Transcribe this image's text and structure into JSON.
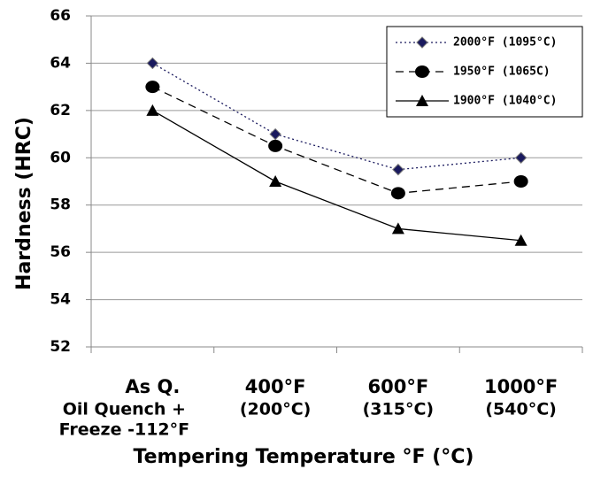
{
  "chart_data": {
    "type": "line",
    "y_label": "Hardness (HRC)",
    "x_label": "Tempering Temperature °F (°C)",
    "categories": [
      [
        "As Q.",
        "Oil Quench +",
        "Freeze -112°F"
      ],
      [
        "400°F",
        "(200°C)"
      ],
      [
        "600°F",
        "(315°C)"
      ],
      [
        "1000°F",
        "(540°C)"
      ]
    ],
    "series": [
      {
        "name": "2000°F (1095°C)",
        "color": "#1a1a5e",
        "marker": "diamond",
        "dash": "dotted",
        "values": [
          64,
          61,
          59.5,
          60
        ]
      },
      {
        "name": "1950°F (1065C)",
        "color": "#000000",
        "marker": "circle",
        "dash": "dashed",
        "values": [
          63,
          60.5,
          58.5,
          59
        ]
      },
      {
        "name": "1900°F (1040°C)",
        "color": "#000000",
        "marker": "triangle",
        "dash": "solid",
        "values": [
          62,
          59,
          57,
          56.5
        ]
      }
    ],
    "ylim": [
      52,
      66
    ],
    "yticks": [
      52,
      54,
      56,
      58,
      60,
      62,
      64,
      66
    ],
    "grid": true,
    "legend": "top-right"
  }
}
